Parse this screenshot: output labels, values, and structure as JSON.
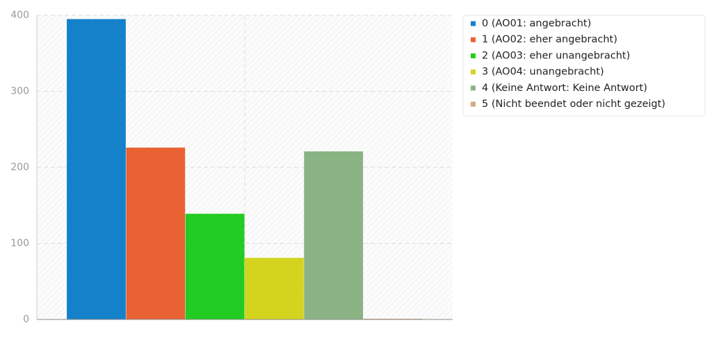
{
  "chart_data": {
    "type": "bar",
    "categories": [
      null
    ],
    "series": [
      {
        "name": "0 (AO01: angebracht)",
        "color": "#1581cb",
        "values": [
          395
        ]
      },
      {
        "name": "1 (AO02: eher angebracht)",
        "color": "#e86233",
        "values": [
          226
        ]
      },
      {
        "name": "2 (AO03: eher unangebracht)",
        "color": "#22cc22",
        "values": [
          139
        ]
      },
      {
        "name": "3 (AO04: unangebracht)",
        "color": "#d4d41e",
        "values": [
          81
        ]
      },
      {
        "name": "4 (Keine Antwort: Keine Antwort)",
        "color": "#89b383",
        "values": [
          221
        ]
      },
      {
        "name": "5 (Nicht beendet oder nicht gezeigt)",
        "color": "#d4aa7d",
        "values": [
          1
        ]
      }
    ],
    "ylim": [
      0,
      400
    ],
    "yticks": [
      0,
      100,
      200,
      300,
      400
    ],
    "grid": true
  }
}
